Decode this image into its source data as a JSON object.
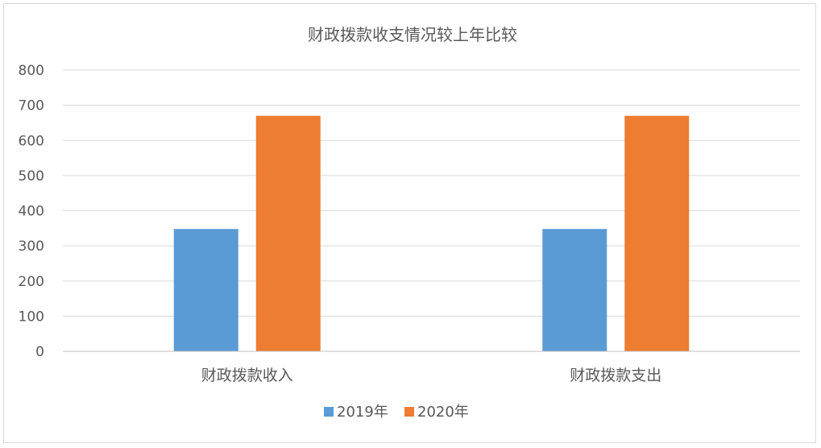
{
  "chart_data": {
    "type": "bar",
    "title": "财政拨款收支情况较上年比较",
    "categories": [
      "财政拨款收入",
      "财政拨款支出"
    ],
    "series": [
      {
        "name": "2019年",
        "values": [
          348,
          348
        ],
        "color": "#5b9bd5"
      },
      {
        "name": "2020年",
        "values": [
          670,
          670
        ],
        "color": "#ed7d31"
      }
    ],
    "ylim": [
      0,
      800
    ],
    "yticks": [
      0,
      100,
      200,
      300,
      400,
      500,
      600,
      700,
      800
    ],
    "grid": true,
    "legend": "bottom-center"
  }
}
